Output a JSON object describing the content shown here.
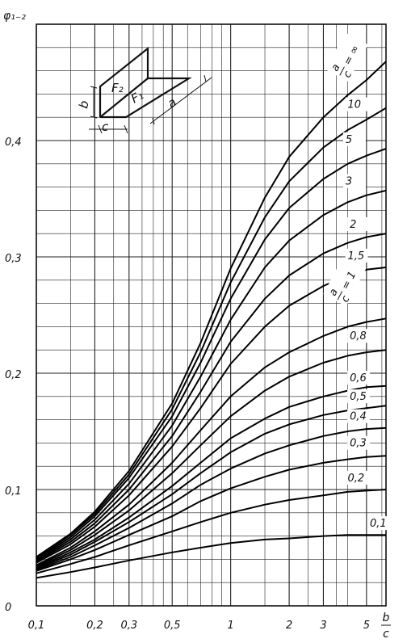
{
  "chart_data": {
    "type": "line",
    "x_scale": "log",
    "xlim": [
      0.1,
      6.3
    ],
    "ylim": [
      0,
      0.5
    ],
    "grid": true,
    "ylabel": "φ₁₋₂",
    "xlabel": {
      "num": "b",
      "den": "c"
    },
    "x_ticks": [
      {
        "v": 0.1,
        "label": "0,1"
      },
      {
        "v": 0.2,
        "label": "0,2"
      },
      {
        "v": 0.3,
        "label": "0,3"
      },
      {
        "v": 0.5,
        "label": "0,5"
      },
      {
        "v": 1,
        "label": "1"
      },
      {
        "v": 2,
        "label": "2"
      },
      {
        "v": 3,
        "label": "3"
      },
      {
        "v": 5,
        "label": "5"
      }
    ],
    "y_ticks": [
      {
        "v": 0,
        "label": "0"
      },
      {
        "v": 0.1,
        "label": "0,1"
      },
      {
        "v": 0.2,
        "label": "0,2"
      },
      {
        "v": 0.3,
        "label": "0,3"
      },
      {
        "v": 0.4,
        "label": "0,4"
      }
    ],
    "x": [
      0.1,
      0.15,
      0.2,
      0.3,
      0.5,
      0.7,
      1,
      1.5,
      2,
      3,
      4,
      5,
      6.3
    ],
    "series": [
      {
        "label": "0,1",
        "values": [
          0.024,
          0.029,
          0.033,
          0.039,
          0.046,
          0.05,
          0.054,
          0.057,
          0.058,
          0.06,
          0.061,
          0.061,
          0.061
        ]
      },
      {
        "label": "0,2",
        "values": [
          0.028,
          0.036,
          0.042,
          0.052,
          0.064,
          0.072,
          0.08,
          0.087,
          0.091,
          0.095,
          0.098,
          0.099,
          0.1
        ]
      },
      {
        "label": "0,3",
        "values": [
          0.03,
          0.04,
          0.048,
          0.061,
          0.077,
          0.09,
          0.101,
          0.111,
          0.117,
          0.123,
          0.126,
          0.128,
          0.129
        ]
      },
      {
        "label": "0,4",
        "values": [
          0.031,
          0.042,
          0.052,
          0.067,
          0.088,
          0.104,
          0.118,
          0.131,
          0.138,
          0.146,
          0.15,
          0.152,
          0.153
        ]
      },
      {
        "label": "0,5",
        "values": [
          0.032,
          0.044,
          0.055,
          0.072,
          0.096,
          0.114,
          0.132,
          0.148,
          0.156,
          0.164,
          0.168,
          0.17,
          0.172
        ]
      },
      {
        "label": "0,6",
        "values": [
          0.033,
          0.046,
          0.057,
          0.076,
          0.103,
          0.123,
          0.144,
          0.161,
          0.171,
          0.18,
          0.185,
          0.188,
          0.189
        ]
      },
      {
        "label": "0,8",
        "values": [
          0.034,
          0.048,
          0.061,
          0.082,
          0.114,
          0.138,
          0.163,
          0.185,
          0.197,
          0.209,
          0.215,
          0.218,
          0.22
        ]
      },
      {
        "label": "a/c = 1",
        "values": [
          0.035,
          0.05,
          0.064,
          0.087,
          0.123,
          0.151,
          0.18,
          0.205,
          0.218,
          0.232,
          0.24,
          0.244,
          0.247
        ]
      },
      {
        "label": "1,5",
        "values": [
          0.037,
          0.053,
          0.068,
          0.095,
          0.137,
          0.17,
          0.208,
          0.24,
          0.258,
          0.275,
          0.284,
          0.289,
          0.291
        ]
      },
      {
        "label": "2",
        "values": [
          0.038,
          0.055,
          0.071,
          0.1,
          0.146,
          0.184,
          0.227,
          0.264,
          0.284,
          0.303,
          0.312,
          0.317,
          0.32
        ]
      },
      {
        "label": "3",
        "values": [
          0.039,
          0.057,
          0.074,
          0.105,
          0.155,
          0.197,
          0.246,
          0.291,
          0.314,
          0.336,
          0.347,
          0.353,
          0.357
        ]
      },
      {
        "label": "5",
        "values": [
          0.04,
          0.059,
          0.077,
          0.11,
          0.163,
          0.209,
          0.264,
          0.315,
          0.342,
          0.367,
          0.38,
          0.387,
          0.393
        ]
      },
      {
        "label": "10",
        "values": [
          0.041,
          0.061,
          0.079,
          0.113,
          0.169,
          0.218,
          0.278,
          0.334,
          0.365,
          0.394,
          0.409,
          0.418,
          0.428
        ]
      },
      {
        "label": "a/c = ∞",
        "values": [
          0.042,
          0.062,
          0.081,
          0.116,
          0.174,
          0.226,
          0.29,
          0.351,
          0.386,
          0.42,
          0.439,
          0.452,
          0.468
        ]
      }
    ],
    "curve_labels": [
      {
        "text": "0,1",
        "x": 5.2,
        "y": 0.068
      },
      {
        "text": "0,2",
        "x": 4.0,
        "y": 0.107
      },
      {
        "text": "0,3",
        "x": 4.1,
        "y": 0.137
      },
      {
        "text": "0,4",
        "x": 4.1,
        "y": 0.16
      },
      {
        "text": "0,5",
        "x": 4.1,
        "y": 0.177
      },
      {
        "text": "0,6",
        "x": 4.1,
        "y": 0.193
      },
      {
        "text": "0,8",
        "x": 4.1,
        "y": 0.229
      },
      {
        "text": "1,5",
        "x": 4.0,
        "y": 0.298
      },
      {
        "text": "2",
        "x": 4.1,
        "y": 0.325
      },
      {
        "text": "3",
        "x": 3.9,
        "y": 0.362
      },
      {
        "text": "5",
        "x": 3.9,
        "y": 0.398
      },
      {
        "text": "10",
        "x": 4.0,
        "y": 0.428
      }
    ],
    "ratio_labels": [
      {
        "num": "a",
        "den": "c",
        "rest": "= 1",
        "x": 3.8,
        "y": 0.262
      },
      {
        "num": "a",
        "den": "c",
        "rest": "= ∞",
        "x": 3.9,
        "y": 0.455
      }
    ],
    "inset_labels": {
      "f2": "F₂",
      "f1": "F₁",
      "a": "a",
      "b": "b",
      "c": "c"
    }
  }
}
